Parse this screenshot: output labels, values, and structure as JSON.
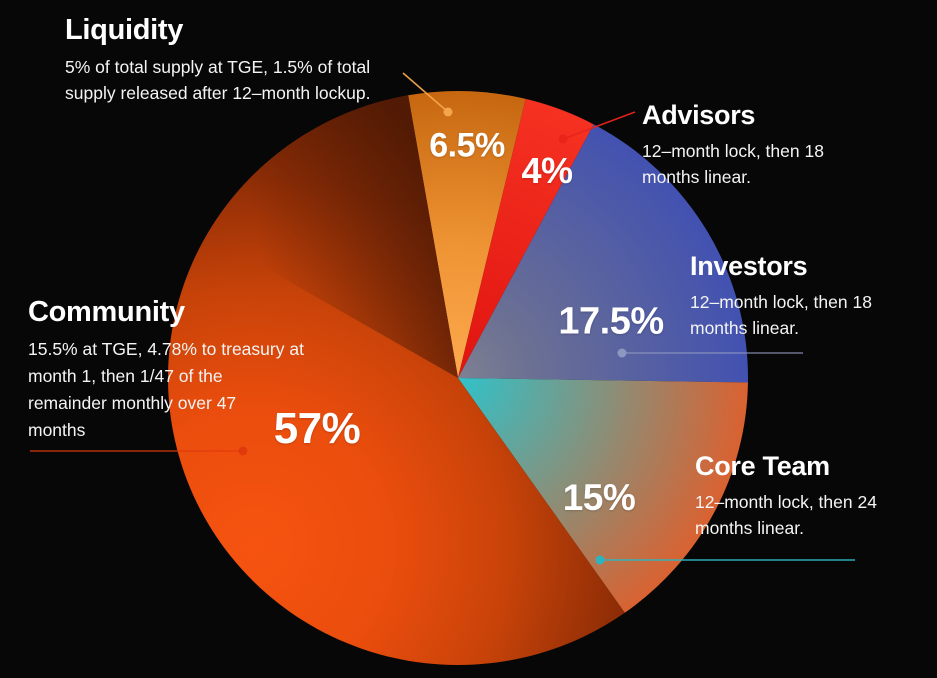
{
  "background": "#070707",
  "chart_data": {
    "type": "pie",
    "title": "",
    "units": "% of total token supply",
    "direction": "clockwise",
    "start_angle_deg": -9.9,
    "legend_position": "callouts-around-pie",
    "slices": [
      {
        "id": "liquidity",
        "label": "Liquidity",
        "value": 6.5,
        "pct_label": "6.5%",
        "desc": "5% of total supply at TGE, 1.5% of total\nsupply released after 12–month lockup.",
        "color_inner": "#fca94f",
        "color_outer": "#c4650e",
        "leader_color": "#f5a54e"
      },
      {
        "id": "advisors",
        "label": "Advisors",
        "value": 4,
        "pct_label": "4%",
        "desc": "12–month lock, then 18\nmonths linear.",
        "color_inner": "#e01410",
        "color_outer": "#f63222",
        "leader_color": "#e9241a"
      },
      {
        "id": "investors",
        "label": "Investors",
        "value": 17.5,
        "pct_label": "17.5%",
        "desc": "12–month lock, then 18\nmonths linear.",
        "color_inner": "#7e8092",
        "color_outer": "#4050b2",
        "leader_color": "#8d97bf"
      },
      {
        "id": "core_team",
        "label": "Core Team",
        "value": 15,
        "pct_label": "15%",
        "desc": "12–month lock, then 24\nmonths linear.",
        "color_inner": "#30c2ca",
        "color_outer": "#e05e2b",
        "leader_color": "#2db4bf"
      },
      {
        "id": "community",
        "label": "Community",
        "value": 57,
        "pct_label": "57%",
        "desc": "15.5% at TGE, 4.78% to treasury at\nmonth 1, then 1/47 of the\nremainder monthly over 47\nmonths",
        "color_inner": "#f65310",
        "color_mid": "#c84309",
        "color_outer": "#6b2205",
        "leader_color": "#e03a0c"
      }
    ]
  }
}
